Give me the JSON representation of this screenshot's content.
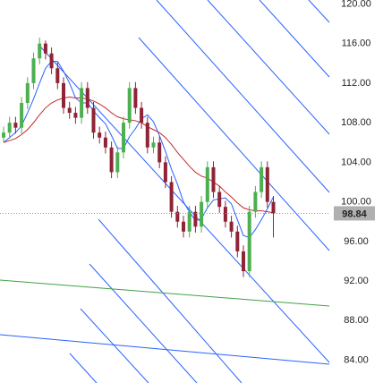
{
  "chart_data": {
    "type": "candlestick",
    "ylim": [
      81.7,
      120.4
    ],
    "yticks": [
      {
        "value": 84,
        "label": "84.00"
      },
      {
        "value": 88,
        "label": "88.00"
      },
      {
        "value": 92,
        "label": "92.00"
      },
      {
        "value": 96,
        "label": "96.00"
      },
      {
        "value": 100,
        "label": "100.00"
      },
      {
        "value": 104,
        "label": "104.00"
      },
      {
        "value": 108,
        "label": "108.00"
      },
      {
        "value": 112,
        "label": "112.00"
      },
      {
        "value": 116,
        "label": "116.00"
      },
      {
        "value": 120,
        "label": "120.00"
      }
    ],
    "up_color": "#4caf50",
    "down_color": "#8e2436",
    "last_price": 98.84,
    "candles": [
      [
        106.5,
        107.6,
        106,
        107
      ],
      [
        107,
        108.6,
        106.4,
        108
      ],
      [
        108,
        108.6,
        106.9,
        107.5
      ],
      [
        107.5,
        110.6,
        106.9,
        110
      ],
      [
        110,
        112.6,
        109.4,
        112
      ],
      [
        112,
        115.1,
        111.4,
        114.5
      ],
      [
        114.5,
        116.6,
        113.9,
        116
      ],
      [
        116,
        116.3,
        114.4,
        115
      ],
      [
        115,
        115.6,
        112.9,
        113.5
      ],
      [
        113.5,
        114.1,
        111.4,
        112
      ],
      [
        112,
        112.6,
        108.9,
        109.5
      ],
      [
        109.5,
        110.1,
        108.4,
        109
      ],
      [
        109,
        109.6,
        107.9,
        108.5
      ],
      [
        108.5,
        112.1,
        107.9,
        111.5
      ],
      [
        111.5,
        112.1,
        108.9,
        109.5
      ],
      [
        109.5,
        110.1,
        106.4,
        107
      ],
      [
        107,
        107.6,
        105.9,
        106.5
      ],
      [
        106.5,
        107.1,
        104.9,
        105.5
      ],
      [
        105.5,
        106.1,
        102.4,
        103
      ],
      [
        103,
        105.6,
        102.4,
        105
      ],
      [
        105,
        108.6,
        104.4,
        108
      ],
      [
        108,
        112.1,
        107.4,
        111.5
      ],
      [
        111.5,
        112.1,
        108.9,
        109.5
      ],
      [
        109.5,
        110.1,
        107.4,
        108
      ],
      [
        108,
        108.6,
        104.9,
        105.5
      ],
      [
        105.5,
        106.6,
        104.9,
        106
      ],
      [
        106,
        106.6,
        103.4,
        104
      ],
      [
        104,
        104.6,
        101.4,
        102
      ],
      [
        102,
        102.6,
        98.4,
        99
      ],
      [
        99,
        99.6,
        97.4,
        98
      ],
      [
        98,
        98.6,
        96.4,
        97
      ],
      [
        97,
        99.6,
        96.4,
        99
      ],
      [
        99,
        99.6,
        96.9,
        97.5
      ],
      [
        97.5,
        100.6,
        96.9,
        100
      ],
      [
        100,
        104.1,
        99.4,
        103.5
      ],
      [
        103.5,
        104.1,
        100.4,
        101
      ],
      [
        101,
        101.6,
        98.9,
        99.5
      ],
      [
        99.5,
        100.1,
        97.4,
        98
      ],
      [
        98,
        98.6,
        96.4,
        97
      ],
      [
        97,
        97.6,
        94.4,
        95
      ],
      [
        95,
        95.6,
        92.4,
        93
      ],
      [
        93,
        99.6,
        92.4,
        99
      ],
      [
        99,
        101.6,
        98.4,
        101
      ],
      [
        101,
        104.1,
        100.4,
        103.5
      ],
      [
        103.5,
        104.1,
        99.4,
        100
      ],
      [
        100,
        100.6,
        96.4,
        98.84
      ]
    ],
    "series": [
      {
        "color": "#2962ff",
        "values": [
          106,
          106.5,
          107,
          107.7,
          109,
          110.4,
          112,
          113.5,
          114.2,
          114.2,
          113.2,
          112,
          110.5,
          110,
          110,
          109.2,
          108.5,
          107.9,
          106.7,
          105.4,
          105.4,
          106.6,
          107.4,
          108.4,
          108.8,
          108.1,
          106.7,
          105.1,
          103.3,
          101.8,
          100,
          99,
          98.1,
          98.3,
          99.4,
          100.2,
          100.3,
          100.4,
          99.8,
          98.2,
          96.6,
          96.4,
          97.2,
          98.2,
          99.3,
          100.5
        ]
      },
      {
        "color": "#c62828",
        "values": [
          106,
          106.2,
          106.4,
          106.8,
          107.3,
          108,
          108.8,
          109.5,
          110,
          110.3,
          110.5,
          110.6,
          110.5,
          110.5,
          110.4,
          110.2,
          109.9,
          109.5,
          109,
          108.6,
          108.4,
          108.3,
          108.2,
          108,
          107.6,
          107.3,
          107,
          106.5,
          105.8,
          105,
          104.3,
          103.6,
          103,
          102.6,
          102.4,
          102,
          101.6,
          101,
          100.5,
          99.9,
          99.4,
          99.2,
          99.1,
          99.1,
          99,
          98.9
        ]
      }
    ]
  }
}
